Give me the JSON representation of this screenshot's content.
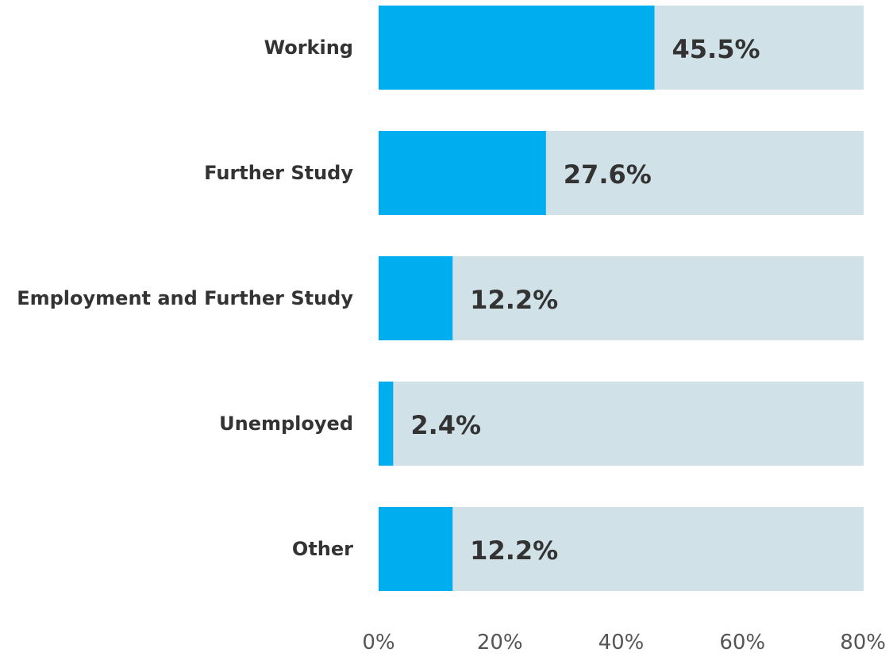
{
  "chart_data": {
    "type": "bar",
    "orientation": "horizontal",
    "title": "",
    "xlabel": "",
    "ylabel": "",
    "categories": [
      "Working",
      "Further Study",
      "Employment and Further Study",
      "Unemployed",
      "Other"
    ],
    "values": [
      45.5,
      27.6,
      12.2,
      2.4,
      12.2
    ],
    "value_labels": [
      "45.5%",
      "27.6%",
      "12.2%",
      "2.4%",
      "12.2%"
    ],
    "xlim": [
      0,
      80
    ],
    "ticks": [
      0,
      20,
      40,
      60,
      80
    ],
    "tick_labels": [
      "0%",
      "20%",
      "40%",
      "60%",
      "80%"
    ],
    "grid": false,
    "legend": "none",
    "colors": {
      "bar": "#00aeef",
      "track": "#d0e1e7",
      "text": "#333333",
      "tick_text": "#555555"
    }
  }
}
